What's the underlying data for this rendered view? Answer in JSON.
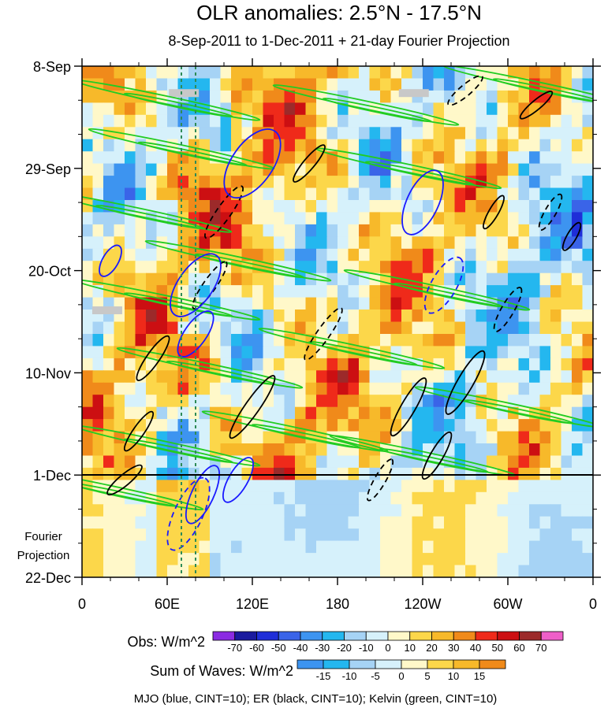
{
  "chart_data": {
    "type": "heatmap",
    "title": "OLR anomalies: 2.5°N - 17.5°N",
    "subtitle": "8-Sep-2011 to 1-Dec-2011 + 21-day Fourier Projection",
    "x_ticks": [
      "0",
      "60E",
      "120E",
      "180",
      "120W",
      "60W",
      "0"
    ],
    "x_range_deg": [
      0,
      360
    ],
    "y_ticks": [
      "8-Sep",
      "29-Sep",
      "20-Oct",
      "10-Nov",
      "1-Dec",
      "22-Dec"
    ],
    "y_range_days": [
      0,
      105
    ],
    "divider_day": 84,
    "projection_label": [
      "Fourier",
      "Projection"
    ],
    "obs_colorbar": {
      "label": "Obs: W/m^2",
      "levels": [
        "-70",
        "-60",
        "-50",
        "-40",
        "-30",
        "-20",
        "-10",
        "0",
        "10",
        "20",
        "30",
        "40",
        "50",
        "60",
        "70"
      ],
      "colors": [
        "#8b2be2",
        "#1a1a9e",
        "#1f2ed8",
        "#3a64e8",
        "#3d94f0",
        "#24b7ef",
        "#a6d3f5",
        "#d6f1fb",
        "#fff8c9",
        "#fcd74a",
        "#f7b92a",
        "#f08a1a",
        "#ef2a1a",
        "#cc0f12",
        "#9c2a2a",
        "#ee5fc8"
      ]
    },
    "waves_colorbar": {
      "label": "Sum of Waves: W/m^2",
      "levels": [
        "-15",
        "-10",
        "-5",
        "0",
        "5",
        "10",
        "15"
      ],
      "colors": [
        "#3d94f0",
        "#24b7ef",
        "#a6d3f5",
        "#d6f1fb",
        "#fff8c9",
        "#fcd74a",
        "#f7b92a",
        "#f08a1a"
      ]
    },
    "legend": "MJO (blue, CINT=10); ER (black, CINT=10); Kelvin (green, CINT=10)",
    "series": [
      {
        "name": "MJO",
        "color": "#1a1aff"
      },
      {
        "name": "ER",
        "color": "#000000"
      },
      {
        "name": "Kelvin",
        "color": "#22cc22"
      }
    ],
    "reference_lines": [
      {
        "lon": 70,
        "color": "#2e8b57",
        "style": "dashed"
      },
      {
        "lon": 80,
        "color": "#2e8b57",
        "style": "dashed"
      }
    ]
  }
}
